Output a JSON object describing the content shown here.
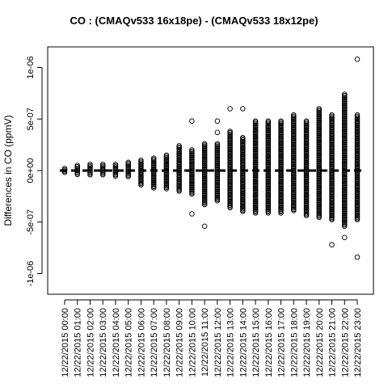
{
  "chart_data": {
    "type": "scatter",
    "title": "CO : (CMAQv533 16x18pe) - (CMAQv533 18x12pe)",
    "xlabel": "",
    "ylabel": "Differences in CO (ppmV)",
    "ylim": [
      -1.2e-06,
      1.2e-06
    ],
    "y_ticks": [
      -1e-06,
      -5e-07,
      0,
      5e-07,
      1e-06
    ],
    "y_tick_labels": [
      "-1e-06",
      "-5e-07",
      "0e+00",
      "5e-07",
      "1e-06"
    ],
    "categories": [
      "12/22/2015 00:00",
      "12/22/2015 01:00",
      "12/22/2015 02:00",
      "12/22/2015 03:00",
      "12/22/2015 04:00",
      "12/22/2015 05:00",
      "12/22/2015 06:00",
      "12/22/2015 07:00",
      "12/22/2015 08:00",
      "12/22/2015 09:00",
      "12/22/2015 10:00",
      "12/22/2015 11:00",
      "12/22/2015 12:00",
      "12/22/2015 13:00",
      "12/22/2015 14:00",
      "12/22/2015 15:00",
      "12/22/2015 16:00",
      "12/22/2015 17:00",
      "12/22/2015 18:00",
      "12/22/2015 19:00",
      "12/22/2015 20:00",
      "12/22/2015 21:00",
      "12/22/2015 22:00",
      "12/22/2015 23:00"
    ],
    "series": [
      {
        "category": "12/22/2015 00:00",
        "max": 2e-08,
        "min": -2e-08,
        "outliers": []
      },
      {
        "category": "12/22/2015 01:00",
        "max": 5e-08,
        "min": -5e-08,
        "outliers": []
      },
      {
        "category": "12/22/2015 02:00",
        "max": 6e-08,
        "min": -5e-08,
        "outliers": []
      },
      {
        "category": "12/22/2015 03:00",
        "max": 6e-08,
        "min": -5e-08,
        "outliers": []
      },
      {
        "category": "12/22/2015 04:00",
        "max": 6e-08,
        "min": -6e-08,
        "outliers": []
      },
      {
        "category": "12/22/2015 05:00",
        "max": 8e-08,
        "min": -6e-08,
        "outliers": []
      },
      {
        "category": "12/22/2015 06:00",
        "max": 1e-07,
        "min": -1.5e-07,
        "outliers": []
      },
      {
        "category": "12/22/2015 07:00",
        "max": 1.2e-07,
        "min": -1.7e-07,
        "outliers": []
      },
      {
        "category": "12/22/2015 08:00",
        "max": 1.5e-07,
        "min": -1.8e-07,
        "outliers": []
      },
      {
        "category": "12/22/2015 09:00",
        "max": 2.4e-07,
        "min": -2.1e-07,
        "outliers": []
      },
      {
        "category": "12/22/2015 10:00",
        "max": 2e-07,
        "min": -2.3e-07,
        "outliers": [
          4.8e-07,
          -4.2e-07
        ]
      },
      {
        "category": "12/22/2015 11:00",
        "max": 2.6e-07,
        "min": -3.4e-07,
        "outliers": [
          -5.4e-07
        ]
      },
      {
        "category": "12/22/2015 12:00",
        "max": 2.6e-07,
        "min": -3e-07,
        "outliers": [
          4.8e-07,
          3.7e-07
        ]
      },
      {
        "category": "12/22/2015 13:00",
        "max": 3.8e-07,
        "min": -3.7e-07,
        "outliers": [
          6e-07
        ]
      },
      {
        "category": "12/22/2015 14:00",
        "max": 3.2e-07,
        "min": -4e-07,
        "outliers": [
          6e-07
        ]
      },
      {
        "category": "12/22/2015 15:00",
        "max": 4.8e-07,
        "min": -4.2e-07,
        "outliers": []
      },
      {
        "category": "12/22/2015 16:00",
        "max": 4.8e-07,
        "min": -4.2e-07,
        "outliers": []
      },
      {
        "category": "12/22/2015 17:00",
        "max": 4.8e-07,
        "min": -4.2e-07,
        "outliers": []
      },
      {
        "category": "12/22/2015 18:00",
        "max": 5.4e-07,
        "min": -4e-07,
        "outliers": []
      },
      {
        "category": "12/22/2015 19:00",
        "max": 4.8e-07,
        "min": -4.4e-07,
        "outliers": []
      },
      {
        "category": "12/22/2015 20:00",
        "max": 6e-07,
        "min": -4.6e-07,
        "outliers": []
      },
      {
        "category": "12/22/2015 21:00",
        "max": 5.4e-07,
        "min": -4.8e-07,
        "outliers": [
          -7.2e-07
        ]
      },
      {
        "category": "12/22/2015 22:00",
        "max": 7.4e-07,
        "min": -5.5e-07,
        "outliers": [
          -6.5e-07
        ]
      },
      {
        "category": "12/22/2015 23:00",
        "max": 5.4e-07,
        "min": -4.8e-07,
        "outliers": [
          1.08e-06,
          -8.4e-07
        ]
      }
    ],
    "reference_line": 0,
    "grid": false,
    "legend": "none"
  }
}
